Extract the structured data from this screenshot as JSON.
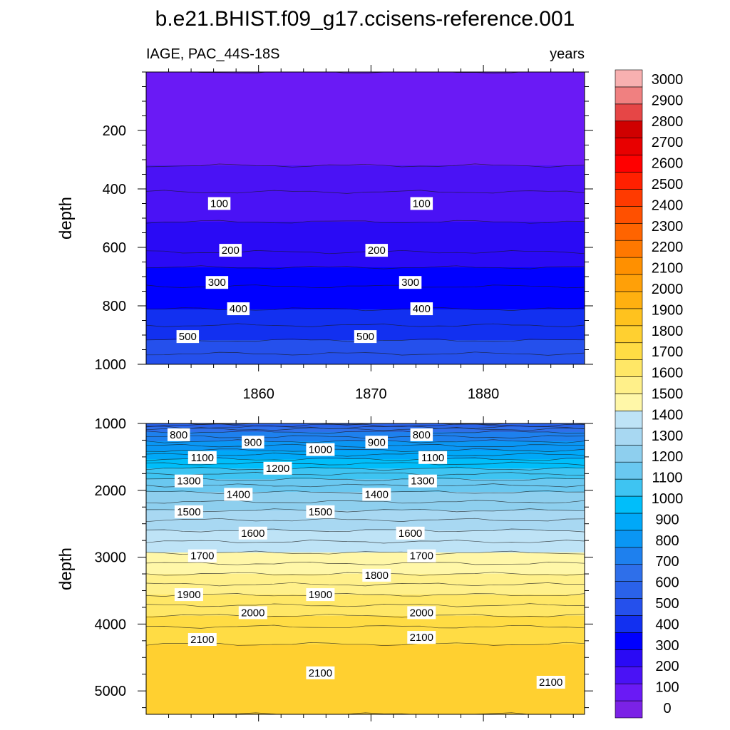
{
  "title": "b.e21.BHIST.f09_g17.ccisens-reference.001",
  "colors": {
    "levels": [
      0,
      100,
      200,
      300,
      400,
      500,
      600,
      700,
      800,
      900,
      1000,
      1100,
      1200,
      1300,
      1400,
      1500,
      1600,
      1700,
      1800,
      1900,
      2000,
      2100,
      2200,
      2300,
      2400,
      2500,
      2600,
      2700,
      2800,
      2900,
      3000
    ],
    "palette": [
      "#7B22E6",
      "#6A1AF5",
      "#4A12F5",
      "#2A0AF5",
      "#0000FF",
      "#1230F0",
      "#2550EC",
      "#2A62EA",
      "#2E6FEA",
      "#1E80EE",
      "#0A96F4",
      "#00A8F8",
      "#00BEFA",
      "#3EC4F2",
      "#6AC8F0",
      "#8ECFEE",
      "#A8D8F2",
      "#BEE3F6",
      "#FFF7A8",
      "#FFF08A",
      "#FFE766",
      "#FFDC44",
      "#FFD030",
      "#FFC21E",
      "#FFB010",
      "#FFA008",
      "#FF9000",
      "#FF7800",
      "#FF6400",
      "#FF5000",
      "#FF3A00",
      "#FF2000",
      "#FF0000",
      "#E80000",
      "#D00000",
      "#E64646",
      "#F08080",
      "#F8B0B0"
    ]
  },
  "chart_data": [
    {
      "type": "contour",
      "panel": "top",
      "left_string": "IAGE, PAC_44S-18S",
      "right_string": "years",
      "ylabel": "depth",
      "ylim": [
        0,
        1000
      ],
      "y_reversed": true,
      "xlim": [
        1850,
        1889
      ],
      "x_ticks": [
        1860,
        1870,
        1880
      ],
      "x_tick_labels": [
        "1860",
        "1870",
        "1880"
      ],
      "y_ticks": [
        200,
        400,
        600,
        800,
        1000
      ],
      "y_tick_labels": [
        "200",
        "400",
        "600",
        "800",
        "1000"
      ],
      "profile": {
        "depth": [
          0,
          100,
          200,
          300,
          320,
          400,
          500,
          600,
          700,
          800,
          900,
          1000
        ],
        "value": [
          50,
          70,
          90,
          98,
          100,
          145,
          195,
          235,
          330,
          390,
          480,
          590
        ]
      },
      "contour_labels": [
        {
          "text": "100",
          "x": 1856.5,
          "depth": 450
        },
        {
          "text": "100",
          "x": 1874.5,
          "depth": 450
        },
        {
          "text": "200",
          "x": 1857.5,
          "depth": 610
        },
        {
          "text": "200",
          "x": 1870.5,
          "depth": 610
        },
        {
          "text": "300",
          "x": 1856.3,
          "depth": 720
        },
        {
          "text": "300",
          "x": 1873.5,
          "depth": 720
        },
        {
          "text": "400",
          "x": 1858.2,
          "depth": 810
        },
        {
          "text": "400",
          "x": 1874.5,
          "depth": 810
        },
        {
          "text": "500",
          "x": 1853.7,
          "depth": 905
        },
        {
          "text": "500",
          "x": 1869.5,
          "depth": 905
        }
      ]
    },
    {
      "type": "contour",
      "panel": "bottom",
      "ylabel": "depth",
      "ylim": [
        1000,
        5350
      ],
      "y_reversed": true,
      "xlim": [
        1850,
        1889
      ],
      "y_ticks": [
        1000,
        2000,
        3000,
        4000,
        5000
      ],
      "y_tick_labels": [
        "1000",
        "2000",
        "3000",
        "4000",
        "5000"
      ],
      "profile": {
        "depth": [
          1000,
          1100,
          1200,
          1400,
          1600,
          1800,
          2000,
          2200,
          2300,
          2500,
          3000,
          3500,
          4000,
          4200,
          4500,
          5000,
          5350
        ],
        "value": [
          600,
          780,
          850,
          1000,
          1150,
          1280,
          1390,
          1460,
          1500,
          1570,
          1720,
          1880,
          2040,
          2090,
          2120,
          2140,
          2150
        ]
      },
      "contour_labels": [
        {
          "text": "800",
          "x": 1852.9,
          "depth": 1170
        },
        {
          "text": "900",
          "x": 1859.5,
          "depth": 1280
        },
        {
          "text": "1000",
          "x": 1865.5,
          "depth": 1390
        },
        {
          "text": "900",
          "x": 1870.5,
          "depth": 1280
        },
        {
          "text": "800",
          "x": 1874.5,
          "depth": 1170
        },
        {
          "text": "1100",
          "x": 1855.0,
          "depth": 1510
        },
        {
          "text": "1100",
          "x": 1875.5,
          "depth": 1510
        },
        {
          "text": "1200",
          "x": 1861.7,
          "depth": 1670
        },
        {
          "text": "1300",
          "x": 1853.8,
          "depth": 1860
        },
        {
          "text": "1300",
          "x": 1874.6,
          "depth": 1860
        },
        {
          "text": "1400",
          "x": 1858.2,
          "depth": 2060
        },
        {
          "text": "1400",
          "x": 1870.5,
          "depth": 2060
        },
        {
          "text": "1500",
          "x": 1853.8,
          "depth": 2320
        },
        {
          "text": "1500",
          "x": 1865.5,
          "depth": 2320
        },
        {
          "text": "1600",
          "x": 1859.5,
          "depth": 2640
        },
        {
          "text": "1600",
          "x": 1873.5,
          "depth": 2640
        },
        {
          "text": "1700",
          "x": 1855.0,
          "depth": 2980
        },
        {
          "text": "1700",
          "x": 1874.5,
          "depth": 2980
        },
        {
          "text": "1800",
          "x": 1870.5,
          "depth": 3270
        },
        {
          "text": "1900",
          "x": 1853.8,
          "depth": 3560
        },
        {
          "text": "1900",
          "x": 1865.5,
          "depth": 3560
        },
        {
          "text": "2000",
          "x": 1859.5,
          "depth": 3830
        },
        {
          "text": "2000",
          "x": 1874.5,
          "depth": 3830
        },
        {
          "text": "2100",
          "x": 1855.0,
          "depth": 4230
        },
        {
          "text": "2100",
          "x": 1874.5,
          "depth": 4200
        },
        {
          "text": "2100",
          "x": 1865.5,
          "depth": 4730
        },
        {
          "text": "2100",
          "x": 1886.0,
          "depth": 4870
        }
      ]
    }
  ],
  "colorbar": {
    "labels": [
      "0",
      "100",
      "200",
      "300",
      "400",
      "500",
      "600",
      "700",
      "800",
      "900",
      "1000",
      "1100",
      "1200",
      "1300",
      "1400",
      "1500",
      "1600",
      "1700",
      "1800",
      "1900",
      "2000",
      "2100",
      "2200",
      "2300",
      "2400",
      "2500",
      "2600",
      "2700",
      "2800",
      "2900",
      "3000"
    ]
  }
}
